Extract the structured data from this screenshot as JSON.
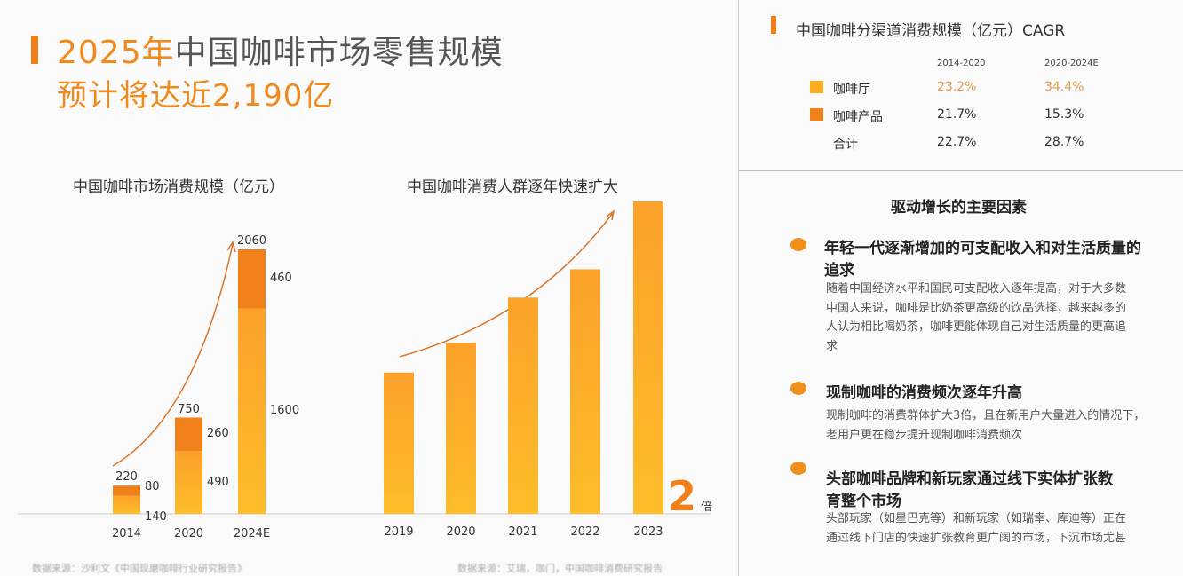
{
  "header": {
    "title_year": "2025年",
    "title_rest": "中国咖啡市场零售规模",
    "subtitle": "预计将达近2,190亿"
  },
  "colors": {
    "accent": "#f07f14",
    "bar_light": "#fbad1d",
    "bar_dark": "#f0801a",
    "highlight_text": "#e0a050"
  },
  "chart_data": [
    {
      "type": "bar",
      "title": "中国咖啡市场消费规模（亿元）",
      "categories": [
        "2014",
        "2020",
        "2024E"
      ],
      "totals": [
        220,
        750,
        2060
      ],
      "series": [
        {
          "values": [
            140,
            490,
            1600
          ]
        },
        {
          "values": [
            80,
            260,
            460
          ]
        }
      ],
      "stacked": true,
      "trend_arrow": true
    },
    {
      "type": "bar",
      "title": "中国咖啡消费人群逐年快速扩大",
      "categories": [
        "2019",
        "2020",
        "2021",
        "2022",
        "2023"
      ],
      "values": [
        1.0,
        1.21,
        1.53,
        1.73,
        2.21
      ],
      "annotation_value": "2",
      "annotation_unit": "倍",
      "trend_arrow": true
    }
  ],
  "cagr": {
    "title": "中国咖啡分渠道消费规模（亿元）CAGR",
    "columns": [
      "2014-2020",
      "2020-2024E"
    ],
    "rows": [
      {
        "label": "咖啡厅",
        "values": [
          "23.2%",
          "34.4%"
        ],
        "color": "#fbad1d",
        "highlight": true
      },
      {
        "label": "咖啡产品",
        "values": [
          "21.7%",
          "15.3%"
        ],
        "color": "#f0801a",
        "highlight": false
      },
      {
        "label": "合计",
        "values": [
          "22.7%",
          "28.7%"
        ],
        "highlight": false
      }
    ]
  },
  "factors": {
    "title": "驱动增长的主要因素",
    "items": [
      {
        "heading": "年轻一代逐渐增加的可支配收入和对生活质量的追求",
        "body": "随着中国经济水平和国民可支配收入逐年提高，对于大多数中国人来说，咖啡是比奶茶更高级的饮品选择，越来越多的人认为相比喝奶茶，咖啡更能体现自己对生活质量的更高追求"
      },
      {
        "heading": "现制咖啡的消费频次逐年升高",
        "body": "现制咖啡的消费群体扩大3倍，且在新用户大量进入的情况下，老用户更在稳步提升现制咖啡消费频次"
      },
      {
        "heading": "头部咖啡品牌和新玩家通过线下实体扩张教育整个市场",
        "body": "头部玩家（如星巴克等）和新玩家（如瑞幸、库迪等）正在通过线下门店的快速扩张教育更广阔的市场，下沉市场尤甚"
      }
    ]
  },
  "footer": {
    "source_left": "数据来源：沙利文《中国现磨咖啡行业研究报告》",
    "source_right": "数据来源：艾瑞，咖门，中国咖啡消费研究报告"
  }
}
